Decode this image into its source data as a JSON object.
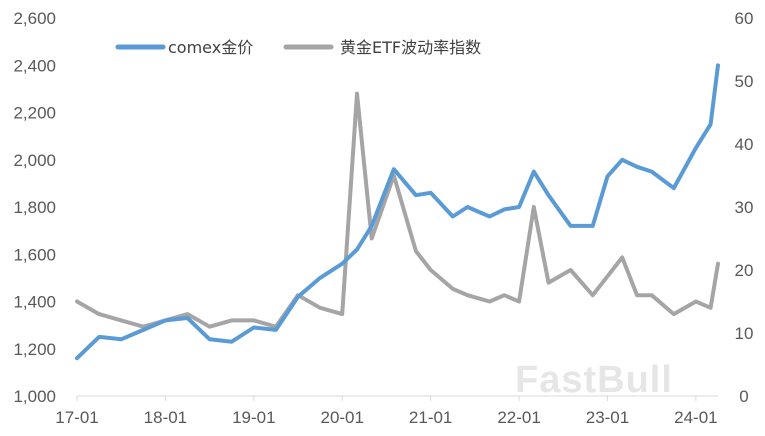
{
  "watermark": "FastBull",
  "chart_data": {
    "type": "line",
    "x": [
      "17-01",
      "17-04",
      "17-07",
      "17-10",
      "18-01",
      "18-04",
      "18-07",
      "18-10",
      "19-01",
      "19-04",
      "19-07",
      "19-10",
      "20-01",
      "20-03",
      "20-05",
      "20-08",
      "20-11",
      "21-01",
      "21-04",
      "21-06",
      "21-09",
      "21-11",
      "22-01",
      "22-03",
      "22-05",
      "22-08",
      "22-11",
      "23-01",
      "23-03",
      "23-05",
      "23-07",
      "23-10",
      "24-01",
      "24-03",
      "24-04"
    ],
    "x_ticks": [
      "17-01",
      "18-01",
      "19-01",
      "20-01",
      "21-01",
      "22-01",
      "23-01",
      "24-01"
    ],
    "y_left": {
      "min": 1000,
      "max": 2600,
      "ticks": [
        "1,000",
        "1,200",
        "1,400",
        "1,600",
        "1,800",
        "2,000",
        "2,200",
        "2,400",
        "2,600"
      ]
    },
    "y_right": {
      "min": 0,
      "max": 60,
      "ticks": [
        "0",
        "10",
        "20",
        "30",
        "40",
        "50",
        "60"
      ]
    },
    "grid": false,
    "legend_position": "top-left",
    "series": [
      {
        "name": "comex金价",
        "axis": "left",
        "color": "#5b9bd5",
        "values": [
          1160,
          1250,
          1240,
          1280,
          1320,
          1330,
          1240,
          1230,
          1290,
          1280,
          1420,
          1500,
          1560,
          1620,
          1720,
          1960,
          1850,
          1860,
          1760,
          1800,
          1760,
          1790,
          1800,
          1950,
          1850,
          1720,
          1720,
          1930,
          2000,
          1970,
          1950,
          1880,
          2050,
          2150,
          2400
        ]
      },
      {
        "name": "黄金ETF波动率指数",
        "axis": "right",
        "color": "#a5a5a5",
        "values": [
          15,
          13,
          12,
          11,
          12,
          13,
          11,
          12,
          12,
          11,
          16,
          14,
          13,
          48,
          25,
          35,
          23,
          20,
          17,
          16,
          15,
          16,
          15,
          30,
          18,
          20,
          16,
          19,
          22,
          16,
          16,
          13,
          15,
          14,
          21
        ]
      }
    ]
  }
}
